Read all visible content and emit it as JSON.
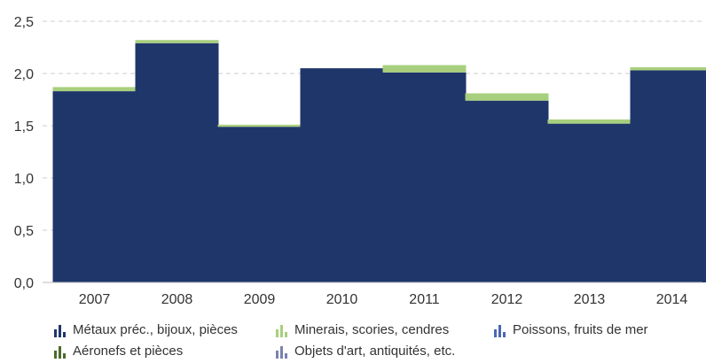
{
  "chart_data": {
    "type": "bar",
    "stacked": true,
    "categories": [
      "2007",
      "2008",
      "2009",
      "2010",
      "2011",
      "2012",
      "2013",
      "2014"
    ],
    "series": [
      {
        "name": "Métaux préc., bijoux, pièces",
        "color": "#1f366b",
        "values": [
          1.83,
          2.29,
          1.49,
          2.05,
          2.01,
          1.74,
          1.52,
          2.03
        ]
      },
      {
        "name": "Minerais, scories, cendres",
        "color": "#a8cf7e",
        "values": [
          0.04,
          0.03,
          0.02,
          0.0,
          0.07,
          0.07,
          0.04,
          0.03
        ]
      },
      {
        "name": "Poissons, fruits de mer",
        "color": "#4a67b5",
        "values": [
          0,
          0,
          0,
          0,
          0,
          0,
          0,
          0
        ]
      },
      {
        "name": "Aéronefs et pièces",
        "color": "#4b6b2a",
        "values": [
          0,
          0,
          0,
          0,
          0,
          0,
          0,
          0
        ]
      },
      {
        "name": "Objets d'art, antiquités, etc.",
        "color": "#7a82b0",
        "values": [
          0,
          0,
          0,
          0,
          0,
          0,
          0,
          0
        ]
      }
    ],
    "yticks": [
      "0,0",
      "0,5",
      "1,0",
      "1,5",
      "2,0",
      "2,5"
    ],
    "ylim": [
      0,
      2.5
    ],
    "grid": true,
    "legend_position": "bottom"
  }
}
